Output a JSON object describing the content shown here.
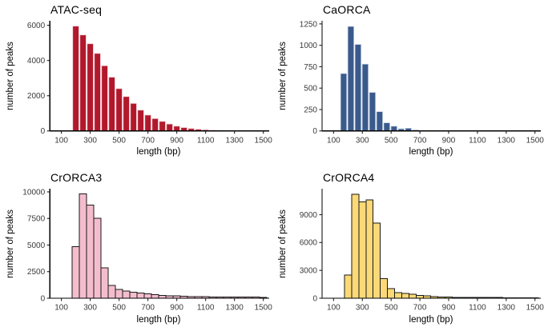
{
  "figure": {
    "background": "#ffffff",
    "axis_line_color": "#000000",
    "tick_label_color": "#3a3a3a"
  },
  "chart_data": [
    {
      "type": "bar",
      "subtype": "histogram",
      "title": "ATAC-seq",
      "xlabel": "length (bp)",
      "ylabel": "number of peaks",
      "bar_fill": "#b2182b",
      "bar_stroke": "#efc4cb",
      "bar_stroke_width": 0.7,
      "bar_gap": true,
      "bin_start": 175,
      "bin_width": 50,
      "values": [
        5950,
        5450,
        4950,
        4400,
        3700,
        3050,
        2400,
        1950,
        1560,
        1180,
        900,
        700,
        540,
        390,
        270,
        190,
        135,
        95,
        65,
        45,
        30,
        18,
        10
      ],
      "x_domain": [
        20,
        1535
      ],
      "x_ticks": [
        100,
        300,
        500,
        700,
        900,
        1100,
        1300,
        1500
      ],
      "y_ticks": [
        0,
        2000,
        4000,
        6000
      ],
      "y_max": 6250,
      "grid": "off",
      "legend": "none"
    },
    {
      "type": "bar",
      "subtype": "histogram",
      "title": "CaORCA",
      "xlabel": "length (bp)",
      "ylabel": "number of peaks",
      "bar_fill": "#3a5a8c",
      "bar_stroke": "#c8d2e4",
      "bar_stroke_width": 0.7,
      "bar_gap": true,
      "bin_start": 145,
      "bin_width": 50,
      "values": [
        670,
        1220,
        1010,
        780,
        450,
        225,
        95,
        55,
        25,
        32,
        12
      ],
      "x_domain": [
        20,
        1535
      ],
      "x_ticks": [
        100,
        300,
        500,
        700,
        900,
        1100,
        1300,
        1500
      ],
      "y_ticks": [
        0,
        250,
        500,
        750,
        1000,
        1250
      ],
      "y_max": 1285,
      "grid": "off",
      "legend": "none"
    },
    {
      "type": "bar",
      "subtype": "histogram",
      "title": "CrORCA3",
      "xlabel": "length (bp)",
      "ylabel": "number of peaks",
      "bar_fill": "#f4bdcd",
      "bar_stroke": "#1a1a1a",
      "bar_stroke_width": 1,
      "bar_gap": false,
      "bin_start": 175,
      "bin_width": 50,
      "values": [
        4850,
        9800,
        8750,
        7500,
        2850,
        1200,
        820,
        680,
        580,
        480,
        400,
        330,
        280,
        240,
        210,
        185,
        165,
        150,
        140,
        130,
        120,
        115,
        110,
        105,
        100,
        95,
        90
      ],
      "x_domain": [
        20,
        1535
      ],
      "x_ticks": [
        100,
        300,
        500,
        700,
        900,
        1100,
        1300,
        1500
      ],
      "y_ticks": [
        0,
        2500,
        5000,
        7500,
        10000
      ],
      "y_max": 10300,
      "grid": "off",
      "legend": "none"
    },
    {
      "type": "bar",
      "subtype": "histogram",
      "title": "CrORCA4",
      "xlabel": "length (bp)",
      "ylabel": "number of peaks",
      "bar_fill": "#fbd977",
      "bar_stroke": "#1a1a1a",
      "bar_stroke_width": 1,
      "bar_gap": false,
      "bin_start": 175,
      "bin_width": 50,
      "values": [
        2500,
        11200,
        10400,
        10600,
        8100,
        2100,
        1050,
        620,
        500,
        430,
        320,
        240,
        180,
        140,
        120,
        105,
        95,
        88,
        82,
        76,
        70,
        66,
        62,
        58,
        55,
        52,
        50
      ],
      "x_domain": [
        20,
        1535
      ],
      "x_ticks": [
        100,
        300,
        500,
        700,
        900,
        1100,
        1300,
        1500
      ],
      "y_ticks": [
        0,
        3000,
        6000,
        9000
      ],
      "y_max": 11800,
      "grid": "off",
      "legend": "none"
    }
  ]
}
